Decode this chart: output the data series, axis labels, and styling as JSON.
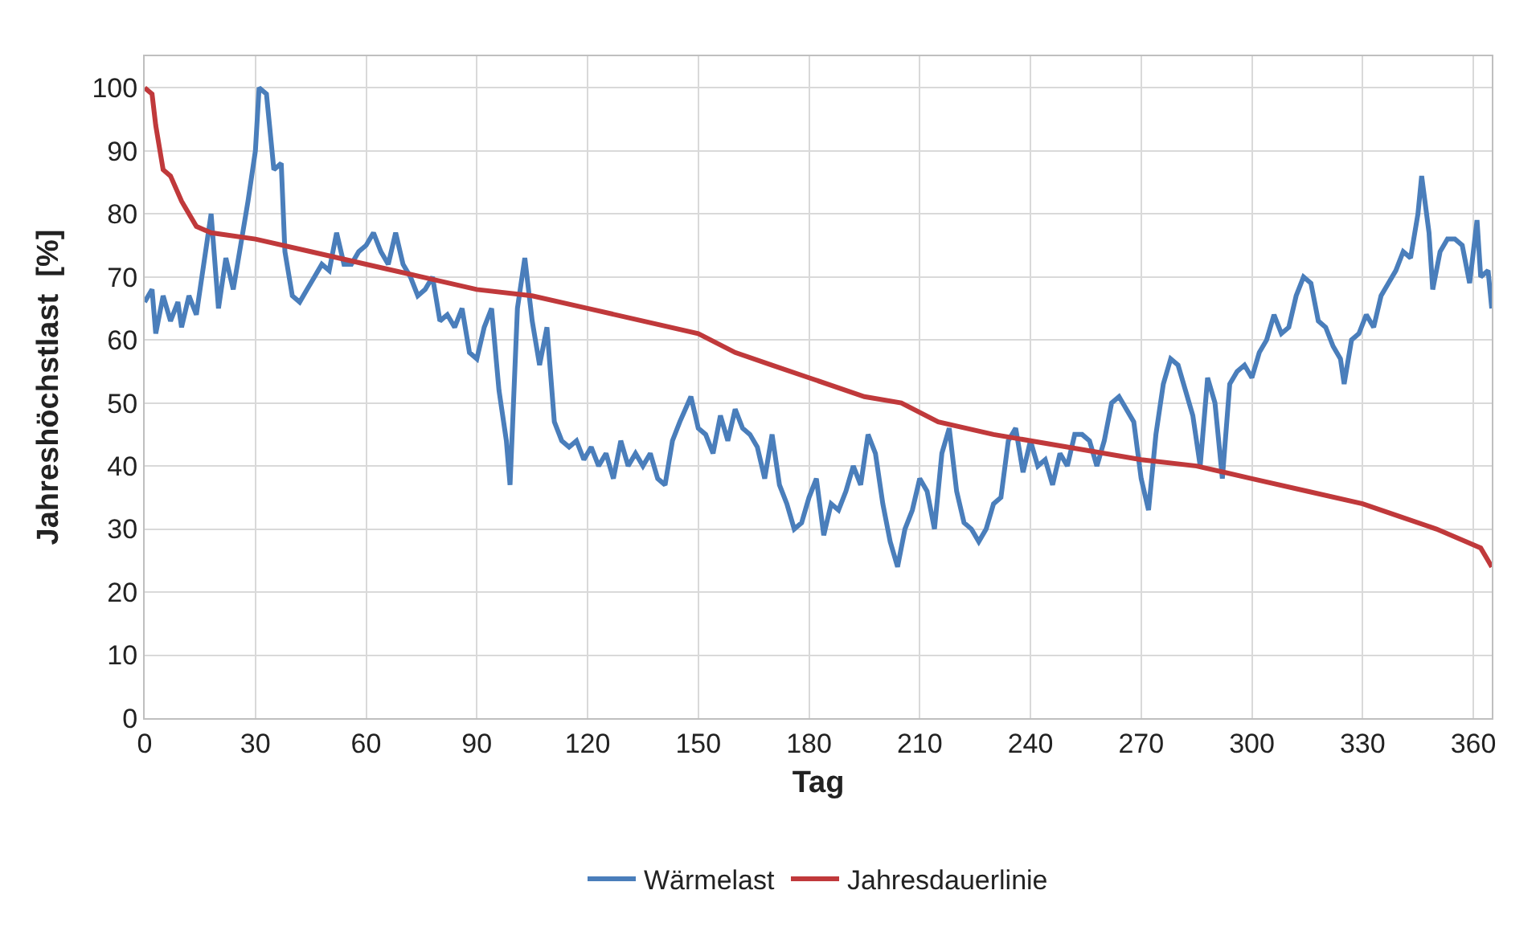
{
  "chart_data": {
    "type": "line",
    "xlabel": "Tag",
    "ylabel": "Jahreshöchstlast  [%]",
    "xlim": [
      0,
      365
    ],
    "xticks": [
      0,
      30,
      60,
      90,
      120,
      150,
      180,
      210,
      240,
      270,
      300,
      330,
      360
    ],
    "ylim": [
      0,
      105
    ],
    "yticks": [
      0,
      10,
      20,
      30,
      40,
      50,
      60,
      70,
      80,
      90,
      100
    ],
    "grid": true,
    "legend": "bottom",
    "marker": "none",
    "line_style": "solid",
    "series": [
      {
        "name": "Wärmelast",
        "color": "#4a7ebb",
        "x": [
          0,
          2,
          3,
          5,
          7,
          9,
          10,
          12,
          14,
          16,
          18,
          20,
          22,
          24,
          26,
          28,
          30,
          31,
          33,
          35,
          37,
          38,
          40,
          42,
          44,
          46,
          48,
          50,
          52,
          54,
          56,
          58,
          60,
          62,
          64,
          66,
          68,
          70,
          72,
          74,
          76,
          78,
          80,
          82,
          84,
          86,
          88,
          90,
          92,
          94,
          96,
          98,
          99,
          101,
          103,
          105,
          107,
          109,
          111,
          113,
          115,
          117,
          119,
          121,
          123,
          125,
          127,
          129,
          131,
          133,
          135,
          137,
          139,
          141,
          143,
          145,
          148,
          150,
          152,
          154,
          156,
          158,
          160,
          162,
          164,
          166,
          168,
          170,
          172,
          174,
          176,
          178,
          180,
          182,
          184,
          186,
          188,
          190,
          192,
          194,
          196,
          198,
          200,
          202,
          204,
          206,
          208,
          210,
          212,
          214,
          216,
          218,
          220,
          222,
          224,
          226,
          228,
          230,
          232,
          234,
          236,
          238,
          240,
          242,
          244,
          246,
          248,
          250,
          252,
          254,
          256,
          258,
          260,
          262,
          264,
          266,
          268,
          270,
          272,
          274,
          276,
          278,
          280,
          282,
          284,
          286,
          288,
          290,
          292,
          294,
          296,
          298,
          300,
          302,
          304,
          306,
          308,
          310,
          312,
          314,
          316,
          318,
          320,
          322,
          324,
          325,
          327,
          329,
          331,
          333,
          335,
          337,
          339,
          341,
          343,
          345,
          346,
          348,
          349,
          351,
          353,
          355,
          357,
          359,
          361,
          362,
          364,
          365
        ],
        "values": [
          66,
          68,
          61,
          67,
          63,
          66,
          62,
          67,
          64,
          72,
          80,
          65,
          73,
          68,
          75,
          82,
          90,
          100,
          99,
          87,
          88,
          74,
          67,
          66,
          68,
          70,
          72,
          71,
          77,
          72,
          72,
          74,
          75,
          77,
          74,
          72,
          77,
          72,
          70,
          67,
          68,
          70,
          63,
          64,
          62,
          65,
          58,
          57,
          62,
          65,
          52,
          44,
          37,
          65,
          73,
          63,
          56,
          62,
          47,
          44,
          43,
          44,
          41,
          43,
          40,
          42,
          38,
          44,
          40,
          42,
          40,
          42,
          38,
          37,
          44,
          47,
          51,
          46,
          45,
          42,
          48,
          44,
          49,
          46,
          45,
          43,
          38,
          45,
          37,
          34,
          30,
          31,
          35,
          38,
          29,
          34,
          33,
          36,
          40,
          37,
          45,
          42,
          34,
          28,
          24,
          30,
          33,
          38,
          36,
          30,
          42,
          46,
          36,
          31,
          30,
          28,
          30,
          34,
          35,
          44,
          46,
          39,
          44,
          40,
          41,
          37,
          42,
          40,
          45,
          45,
          44,
          40,
          44,
          50,
          51,
          49,
          47,
          38,
          33,
          45,
          53,
          57,
          56,
          52,
          48,
          40,
          54,
          50,
          38,
          53,
          55,
          56,
          54,
          58,
          60,
          64,
          61,
          62,
          67,
          70,
          69,
          63,
          62,
          59,
          57,
          53,
          60,
          61,
          64,
          62,
          67,
          69,
          71,
          74,
          73,
          80,
          86,
          77,
          68,
          74,
          76,
          76,
          75,
          69,
          79,
          70,
          71,
          65
        ]
      },
      {
        "name": "Jahresdauerlinie",
        "color": "#c0393b",
        "x": [
          0,
          2,
          3,
          5,
          7,
          10,
          14,
          18,
          30,
          45,
          60,
          75,
          90,
          105,
          120,
          135,
          150,
          160,
          170,
          180,
          195,
          205,
          215,
          230,
          250,
          270,
          285,
          300,
          315,
          330,
          340,
          350,
          358,
          362,
          364,
          365
        ],
        "values": [
          100,
          99,
          94,
          87,
          86,
          82,
          78,
          77,
          76,
          74,
          72,
          70,
          68,
          67,
          65,
          63,
          61,
          58,
          56,
          54,
          51,
          50,
          47,
          45,
          43,
          41,
          40,
          38,
          36,
          34,
          32,
          30,
          28,
          27,
          25,
          24
        ]
      }
    ]
  }
}
